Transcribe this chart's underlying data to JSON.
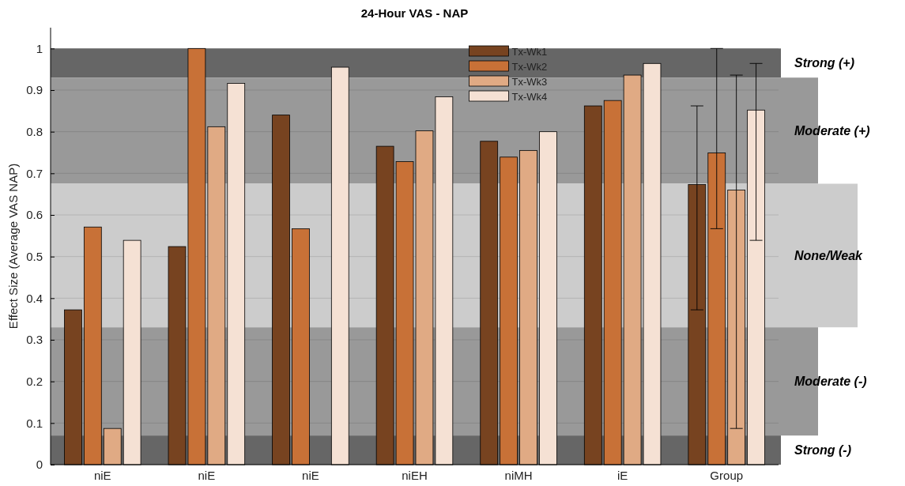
{
  "chart_data": {
    "type": "bar",
    "title": "24-Hour VAS - NAP",
    "ylabel": "Effect Size (Average VAS NAP)",
    "categories": [
      "niE",
      "niE",
      "niE",
      "niEH",
      "niMH",
      "iE",
      "Group"
    ],
    "series": [
      {
        "name": "Tx-Wk1",
        "color": "#774320",
        "values": [
          0.372,
          0.524,
          0.84,
          0.765,
          0.777,
          0.862,
          0.673
        ],
        "errors": [
          null,
          null,
          null,
          null,
          null,
          null,
          [
            0.372,
            0.862
          ]
        ]
      },
      {
        "name": "Tx-Wk2",
        "color": "#c87137",
        "values": [
          0.571,
          1.0,
          0.567,
          0.728,
          0.739,
          0.875,
          0.749
        ],
        "errors": [
          null,
          null,
          null,
          null,
          null,
          null,
          [
            0.567,
            1.0
          ]
        ]
      },
      {
        "name": "Tx-Wk3",
        "color": "#e0aa84",
        "values": [
          0.087,
          0.812,
          0.0,
          0.802,
          0.755,
          0.936,
          0.66
        ],
        "errors": [
          null,
          null,
          null,
          null,
          null,
          null,
          [
            0.087,
            0.936
          ]
        ]
      },
      {
        "name": "Tx-Wk4",
        "color": "#f5e1d4",
        "values": [
          0.539,
          0.916,
          0.955,
          0.884,
          0.8,
          0.964,
          0.852
        ],
        "errors": [
          null,
          null,
          null,
          null,
          null,
          null,
          [
            0.539,
            0.964
          ]
        ]
      }
    ],
    "ylim": [
      0,
      1.05
    ],
    "yticks": [
      0,
      0.1,
      0.2,
      0.3,
      0.4,
      0.5,
      0.6,
      0.7,
      0.8,
      0.9,
      1
    ],
    "bands": [
      {
        "axis": "y",
        "from": 0.93,
        "to": 1.0,
        "label": "Strong (+)",
        "color": "#666666"
      },
      {
        "axis": "y",
        "from": 0.675,
        "to": 0.93,
        "label": "Moderate (+)",
        "color": "#999999"
      },
      {
        "axis": "y",
        "from": 0.33,
        "to": 0.675,
        "label": "None/Weak",
        "color": "#cccccc"
      },
      {
        "axis": "y",
        "from": 0.07,
        "to": 0.33,
        "label": "Moderate (-)",
        "color": "#999999"
      },
      {
        "axis": "y",
        "from": 0,
        "to": 0.07,
        "label": "Strong (-)",
        "color": "#666666"
      }
    ],
    "grid": "y",
    "legend": "top"
  }
}
